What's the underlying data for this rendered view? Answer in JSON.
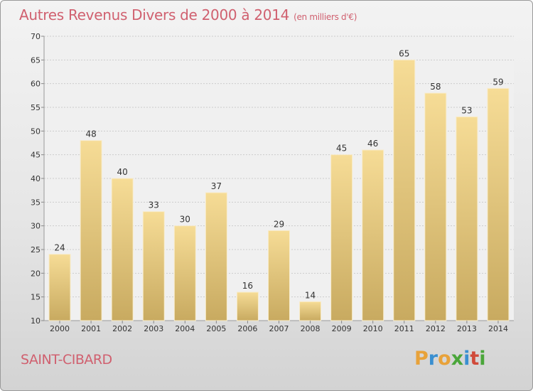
{
  "title": "Autres Revenus Divers de 2000 à 2014",
  "unit_note": "(en milliers d'€)",
  "location": "SAINT-CIBARD",
  "logo": {
    "letters": [
      "P",
      "r",
      "o",
      "x",
      "i",
      "t",
      "i"
    ],
    "colors": [
      "#e8a23a",
      "#3a8fd0",
      "#e8a23a",
      "#4aa63a",
      "#3a8fd0",
      "#d04a3a",
      "#4aa63a"
    ]
  },
  "colors": {
    "bar_light": "#f6dc96",
    "bar_dark": "#c8aa60",
    "grid": "#cccccc",
    "title": "#d0606f"
  },
  "chart_data": {
    "type": "bar",
    "categories": [
      "2000",
      "2001",
      "2002",
      "2003",
      "2004",
      "2005",
      "2006",
      "2007",
      "2008",
      "2009",
      "2010",
      "2011",
      "2012",
      "2013",
      "2014"
    ],
    "values": [
      24,
      48,
      40,
      33,
      30,
      37,
      16,
      29,
      14,
      45,
      46,
      65,
      58,
      53,
      59
    ],
    "ylim": [
      10,
      70
    ],
    "yticks": [
      10,
      15,
      20,
      25,
      30,
      35,
      40,
      45,
      50,
      55,
      60,
      65,
      70
    ],
    "grid": "horizontal dashed",
    "xlabel": "",
    "ylabel": ""
  }
}
